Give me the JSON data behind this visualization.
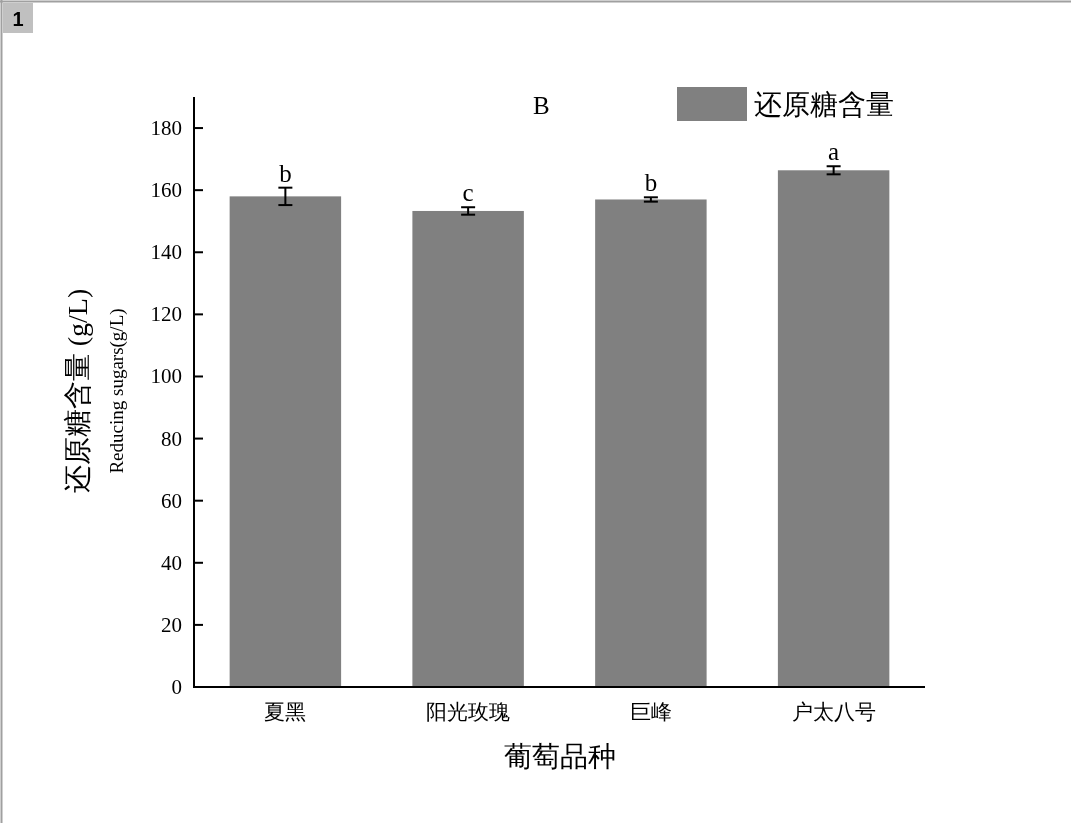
{
  "chart_data": {
    "type": "bar",
    "title": "B",
    "xlabel": "葡萄品种",
    "ylabel": "还原糖含量 (g/L)\nReducing sugars(g/L)",
    "categories": [
      "夏黑",
      "阳光玫瑰",
      "巨峰",
      "户太八号"
    ],
    "series": [
      {
        "name": "还原糖含量",
        "color": "#808080",
        "values": [
          158,
          153.3,
          157,
          166.4
        ],
        "errors": [
          2.8,
          1.2,
          0.7,
          1.3
        ]
      }
    ],
    "ylim": [
      0,
      190
    ],
    "yticks": [
      0,
      20,
      40,
      60,
      80,
      100,
      120,
      140,
      160,
      180
    ],
    "legend": "top right",
    "annotations": [
      {
        "text": "b",
        "x": "夏黑",
        "y": 158
      },
      {
        "text": "c",
        "x": "阳光玫瑰",
        "y": 153.3
      },
      {
        "text": "b",
        "x": "巨峰",
        "y": 157
      },
      {
        "text": "a",
        "x": "户太八号",
        "y": 166.4
      },
      "1"
    ]
  }
}
